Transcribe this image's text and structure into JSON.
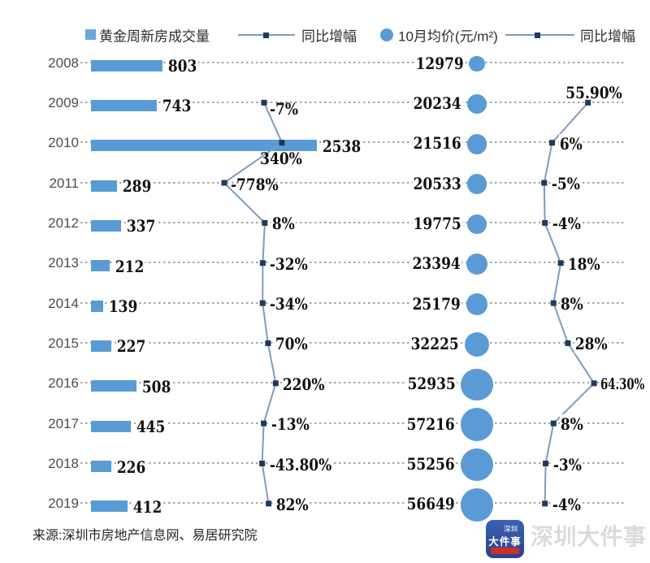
{
  "legend": [
    {
      "label": "黄金周新房成交量"
    },
    {
      "label": "同比增幅"
    },
    {
      "label": "10月均价(元/m²)"
    },
    {
      "label": "同比增幅"
    }
  ],
  "source_note": "来源:深圳市房地产信息网、易居研究院",
  "watermark": "深圳大件事",
  "logo": {
    "top": "深圳",
    "main": "大件事"
  },
  "colors": {
    "bar": "#5B9BD5",
    "bubble": "#5B9BD5",
    "line": "#7C9DBD",
    "marker": "#1E3A5F",
    "grid": "#A6A6A6",
    "year_text": "#4D4D4D",
    "value_text": "#101010"
  },
  "chart_data": {
    "type": "bar+line+bubble",
    "years": [
      "2008",
      "2009",
      "2010",
      "2011",
      "2012",
      "2013",
      "2014",
      "2015",
      "2016",
      "2017",
      "2018",
      "2019"
    ],
    "series": [
      {
        "name": "黄金周新房成交量",
        "type": "bar",
        "values": [
          803,
          743,
          2538,
          289,
          337,
          212,
          139,
          227,
          508,
          445,
          226,
          412
        ]
      },
      {
        "name": "同比增幅(成交量)",
        "type": "line",
        "values": [
          null,
          -7,
          340,
          -778,
          8,
          -32,
          -34,
          70,
          220,
          -13,
          -43.8,
          82
        ],
        "labels": [
          "",
          "-7%",
          "340%",
          "-778%",
          "8%",
          "-32%",
          "-34%",
          "70%",
          "220%",
          "-13%",
          "-43.80%",
          "82%"
        ]
      },
      {
        "name": "10月均价(元/m²)",
        "type": "bubble",
        "values": [
          12979,
          20234,
          21516,
          20533,
          19775,
          23394,
          25179,
          32225,
          52935,
          57216,
          55256,
          56649
        ]
      },
      {
        "name": "同比增幅(均价)",
        "type": "line",
        "values": [
          null,
          55.9,
          6,
          -5,
          -4,
          18,
          8,
          28,
          64.3,
          8,
          -3,
          -4
        ],
        "labels": [
          "",
          "55.90%",
          "6%",
          "-5%",
          "-4%",
          "18%",
          "8%",
          "28%",
          "64.30%",
          "8%",
          "-3%",
          "-4%"
        ]
      }
    ]
  }
}
